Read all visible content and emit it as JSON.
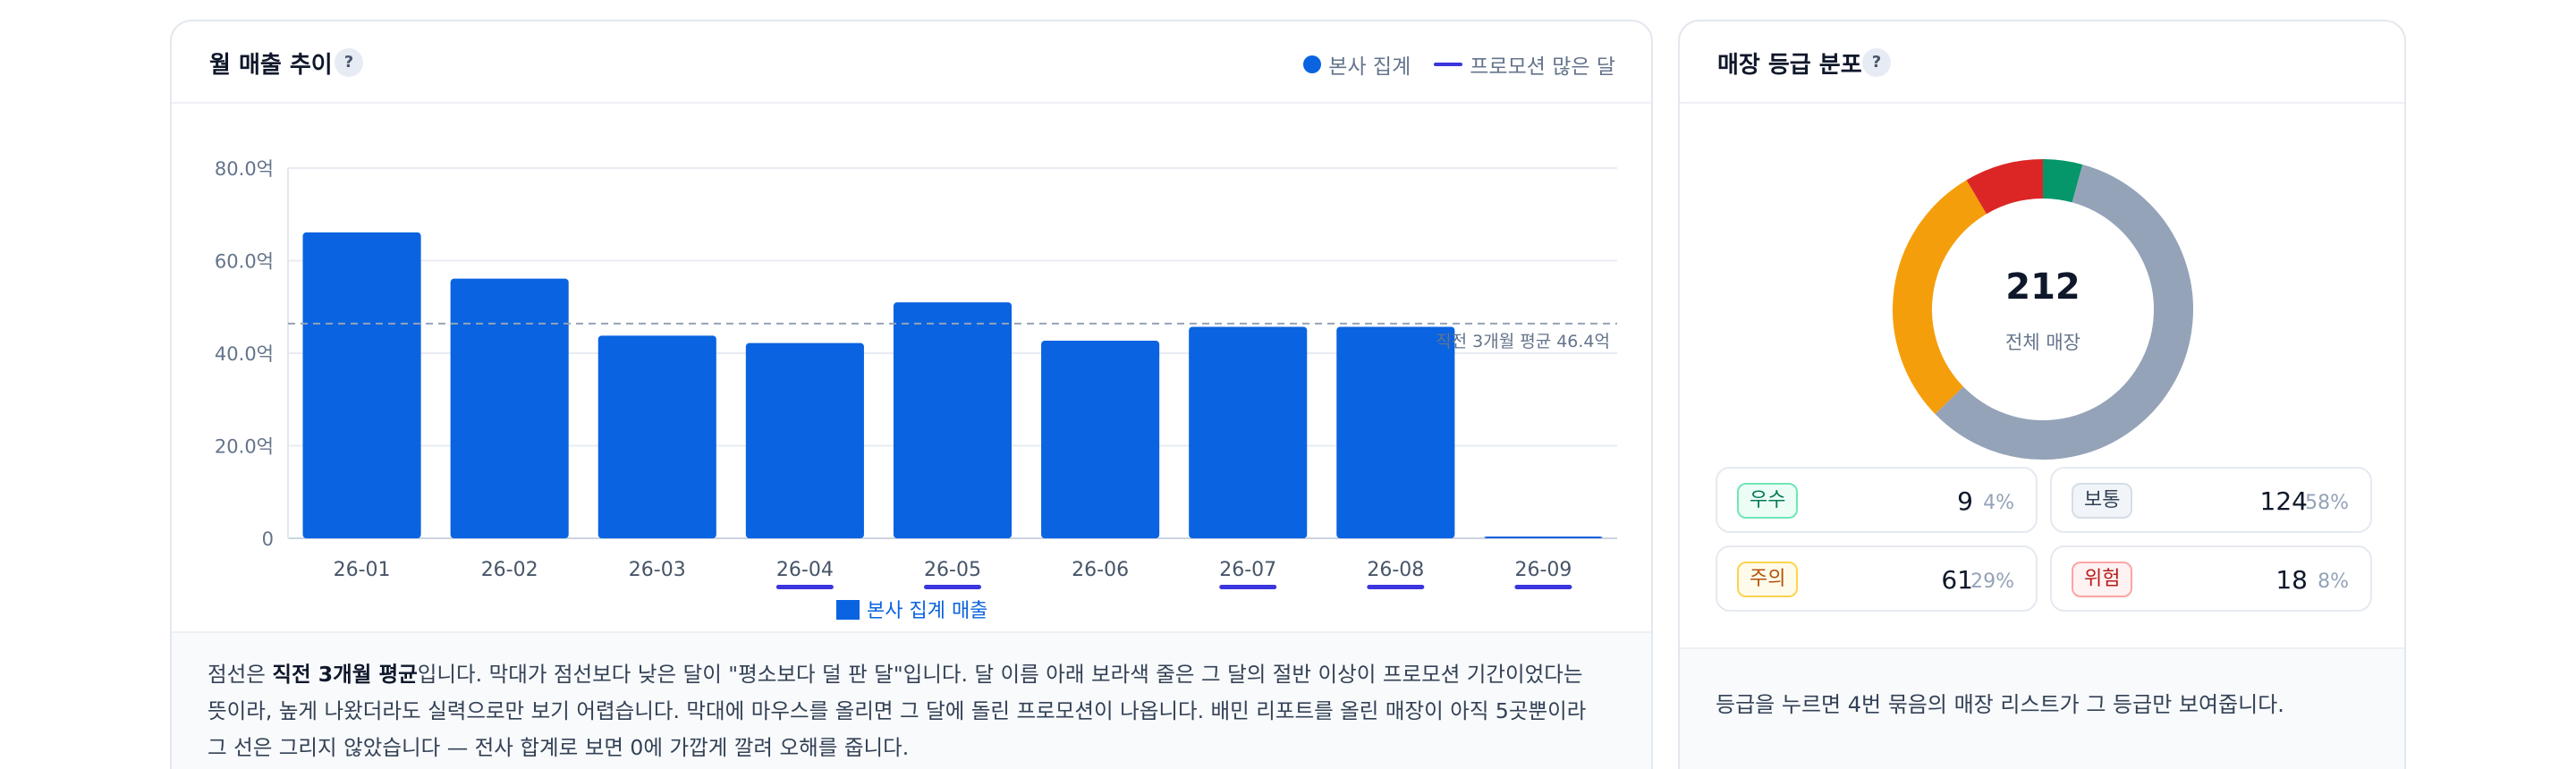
{
  "sales_card": {
    "title": "월 매출 추이",
    "help_label": "?",
    "legend_top": {
      "hq_total": "본사 집계",
      "promo_month": "프로모션 많은 달"
    },
    "legend_bottom": "본사 집계 매출",
    "avg_label": "직전 3개월 평균 46.4억",
    "note_parts": [
      "점선은 ",
      "직전 3개월 평균",
      "입니다. 막대가 점선보다 낮은 달이 \"평소보다 덜 판 달\"입니다. 달 이름 아래 보라색 줄은 그 달의 절반 이상이 프로모션 기간이었다는 뜻이라, 높게 나왔더라도 실력으로만 보기 어렵습니다. 막대에 마우스를 올리면 그 달에 돌린 프로모션이 나옵니다. 배민 리포트를 올린 매장이 아직 5곳뿐이라 그 선은 그리지 않았습니다 — 전사 합계로 보면 0에 가깝게 깔려 오해를 줍니다."
    ]
  },
  "chart_data": {
    "type": "bar",
    "categories": [
      "26-01",
      "26-02",
      "26-03",
      "26-04",
      "26-05",
      "26-06",
      "26-07",
      "26-08",
      "26-09"
    ],
    "series": [
      {
        "name": "본사 집계 매출",
        "values": [
          66.1,
          56.1,
          43.8,
          42.2,
          51.0,
          42.7,
          45.7,
          45.7,
          0.3
        ]
      }
    ],
    "yticks": [
      0,
      20,
      40,
      60,
      80
    ],
    "ytick_labels": [
      "0",
      "20.0억",
      "40.0억",
      "60.0억",
      "80.0억"
    ],
    "ylim": [
      0,
      80
    ],
    "reference_line": {
      "value": 46.4,
      "label": "직전 3개월 평균 46.4억"
    },
    "promo_months": [
      "26-04",
      "26-05",
      "26-07",
      "26-08",
      "26-09"
    ],
    "grid": true,
    "colors": {
      "bar": "#0a63e0",
      "promo": "#3b35de",
      "avg_line": "#94a3b8"
    }
  },
  "grade_card": {
    "title": "매장 등급 분포",
    "help_label": "?",
    "total": "212",
    "total_label": "전체 매장",
    "grades": [
      {
        "label": "우수",
        "count": "9",
        "pct": "4%",
        "value": 9,
        "color": "#059669",
        "badge_bg": "#ecfdf5",
        "badge_border": "#6ee7b7",
        "badge_text": "#047857"
      },
      {
        "label": "보통",
        "count": "124",
        "pct": "58%",
        "value": 124,
        "color": "#94a3b8",
        "badge_bg": "#f1f5f9",
        "badge_border": "#d5dde7",
        "badge_text": "#334155"
      },
      {
        "label": "주의",
        "count": "61",
        "pct": "29%",
        "value": 61,
        "color": "#f59e0b",
        "badge_bg": "#fffbeb",
        "badge_border": "#fcd34d",
        "badge_text": "#b45309"
      },
      {
        "label": "위험",
        "count": "18",
        "pct": "8%",
        "value": 18,
        "color": "#dc2626",
        "badge_bg": "#fef2f2",
        "badge_border": "#fca5a5",
        "badge_text": "#b91c1c"
      }
    ],
    "note": "등급을 누르면 4번 묶음의 매장 리스트가 그 등급만 보여줍니다."
  }
}
